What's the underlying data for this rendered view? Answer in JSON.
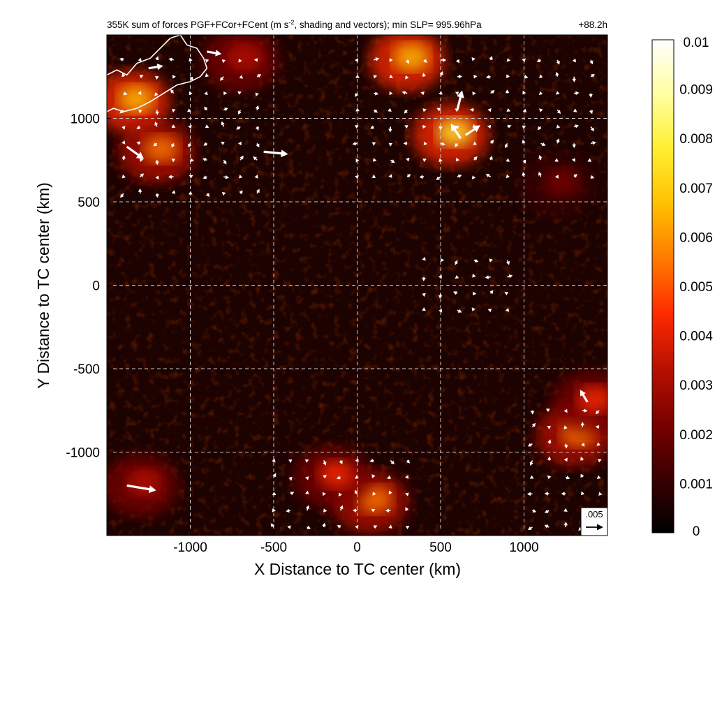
{
  "chart_data": {
    "type": "heatmap",
    "title_main": "355K sum of forces PGF+FCor+FCent (m s",
    "title_sup": "-2",
    "title_rest": ", shading and vectors); min SLP= 995.96hPa",
    "time_label": "+88.2h",
    "xlabel": "X Distance to TC center (km)",
    "ylabel": "Y Distance to TC center (km)",
    "xlim": [
      -1500,
      1500
    ],
    "ylim": [
      -1500,
      1500
    ],
    "x_ticks": [
      -1000,
      -500,
      0,
      500,
      1000
    ],
    "x_tick_labels": [
      "-1000",
      "-500",
      "0",
      "500",
      "1000"
    ],
    "y_ticks": [
      1000,
      500,
      0,
      -500,
      -1000
    ],
    "y_tick_labels": [
      "1000",
      "500",
      "0",
      "-500",
      "-1000"
    ],
    "grid": true,
    "colorbar": {
      "min": 0,
      "max": 0.01,
      "tick_values": [
        0.01,
        0.009,
        0.008,
        0.007,
        0.006,
        0.005,
        0.004,
        0.003,
        0.002,
        0.001,
        0
      ],
      "tick_labels": [
        "0.01",
        "0.009",
        "0.008",
        "0.007",
        "0.006",
        "0.005",
        "0.004",
        "0.003",
        "0.002",
        "0.001",
        "0"
      ],
      "colormap": [
        "#000000",
        "#3a0000",
        "#7a0000",
        "#b81000",
        "#ff2a00",
        "#ff7a00",
        "#ffc000",
        "#ffee30",
        "#ffffa0",
        "#ffffff"
      ]
    },
    "reference_vector": {
      "label": ".005",
      "magnitude": 0.005
    },
    "hotspots": [
      {
        "x": 560,
        "y": 900,
        "intensity": 0.008
      },
      {
        "x": 300,
        "y": 1350,
        "intensity": 0.007
      },
      {
        "x": -1350,
        "y": 1100,
        "intensity": 0.0065
      },
      {
        "x": -1200,
        "y": 800,
        "intensity": 0.006
      },
      {
        "x": 1300,
        "y": -900,
        "intensity": 0.0055
      },
      {
        "x": 1400,
        "y": -700,
        "intensity": 0.0045
      },
      {
        "x": 80,
        "y": -1300,
        "intensity": 0.005
      },
      {
        "x": -150,
        "y": -1150,
        "intensity": 0.004
      },
      {
        "x": -1300,
        "y": -1200,
        "intensity": 0.003
      },
      {
        "x": 1200,
        "y": 600,
        "intensity": 0.0025
      },
      {
        "x": -700,
        "y": 1350,
        "intensity": 0.0035
      }
    ],
    "vector_regions": [
      {
        "x0": -1400,
        "x1": -600,
        "y0": 550,
        "y1": 1400
      },
      {
        "x0": 0,
        "x1": 1400,
        "y0": 650,
        "y1": 1400
      },
      {
        "x0": -500,
        "x1": 300,
        "y0": -1450,
        "y1": -1050
      },
      {
        "x0": 1050,
        "x1": 1450,
        "y0": -1450,
        "y1": -750
      },
      {
        "x0": 400,
        "x1": 900,
        "y0": -150,
        "y1": 150
      }
    ],
    "large_vectors": [
      {
        "x": -1380,
        "y": 830,
        "u": 0.0035,
        "v": -0.0025
      },
      {
        "x": -560,
        "y": 800,
        "u": 0.005,
        "v": -0.0005
      },
      {
        "x": -1380,
        "y": -1200,
        "u": 0.006,
        "v": -0.001
      },
      {
        "x": -1250,
        "y": 1300,
        "u": 0.003,
        "v": 0.0005
      },
      {
        "x": 600,
        "y": 1050,
        "u": 0.001,
        "v": 0.004
      },
      {
        "x": 620,
        "y": 880,
        "u": -0.002,
        "v": 0.003
      },
      {
        "x": 650,
        "y": 900,
        "u": 0.003,
        "v": 0.002
      },
      {
        "x": 1380,
        "y": -700,
        "u": -0.0015,
        "v": 0.0025
      },
      {
        "x": -900,
        "y": 1400,
        "u": 0.003,
        "v": -0.0005
      }
    ],
    "coastline": [
      [
        -1500,
        1260
      ],
      [
        -1440,
        1290
      ],
      [
        -1380,
        1260
      ],
      [
        -1320,
        1330
      ],
      [
        -1240,
        1360
      ],
      [
        -1180,
        1420
      ],
      [
        -1120,
        1480
      ],
      [
        -1060,
        1500
      ],
      [
        -1020,
        1440
      ],
      [
        -960,
        1420
      ],
      [
        -920,
        1360
      ],
      [
        -900,
        1300
      ],
      [
        -940,
        1250
      ],
      [
        -1000,
        1220
      ],
      [
        -1080,
        1200
      ],
      [
        -1160,
        1150
      ],
      [
        -1240,
        1100
      ],
      [
        -1320,
        1060
      ],
      [
        -1400,
        1040
      ],
      [
        -1460,
        1060
      ],
      [
        -1500,
        1040
      ]
    ]
  }
}
